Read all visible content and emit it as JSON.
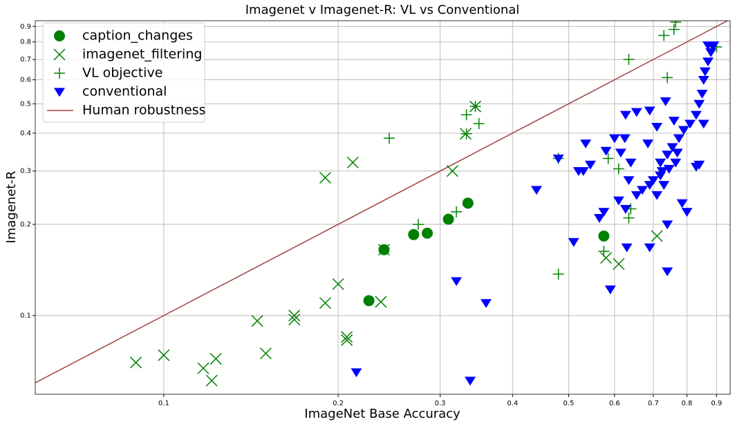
{
  "chart_data": {
    "type": "scatter",
    "title": "Imagenet v Imagenet-R: VL vs Conventional",
    "x_label": "ImageNet Base Accuracy",
    "y_label": "Imagenet-R",
    "xscale": "log",
    "yscale": "log",
    "xlim": [
      0.06,
      0.95
    ],
    "ylim": [
      0.055,
      0.94
    ],
    "xticks": [
      0.1,
      0.2,
      0.3,
      0.4,
      0.5,
      0.6,
      0.7,
      0.8,
      0.9
    ],
    "yticks": [
      0.1,
      0.2,
      0.3,
      0.4,
      0.5,
      0.6,
      0.7,
      0.8,
      0.9
    ],
    "grid": true,
    "legend": "upper left",
    "series": [
      {
        "name": "caption_changes",
        "color": "#008000",
        "marker": "circle",
        "x": [
          0.24,
          0.226,
          0.27,
          0.285,
          0.31,
          0.335,
          0.575
        ],
        "values": [
          0.165,
          0.112,
          0.185,
          0.187,
          0.208,
          0.235,
          0.183
        ]
      },
      {
        "name": "imagenet_filtering",
        "color": "#008000",
        "marker": "x",
        "x": [
          0.0895,
          0.1,
          0.117,
          0.123,
          0.121,
          0.15,
          0.145,
          0.168,
          0.168,
          0.19,
          0.19,
          0.2,
          0.212,
          0.207,
          0.207,
          0.237,
          0.24,
          0.315,
          0.332,
          0.345,
          0.58,
          0.61,
          0.71
        ],
        "values": [
          0.07,
          0.074,
          0.067,
          0.072,
          0.061,
          0.075,
          0.096,
          0.097,
          0.1,
          0.285,
          0.11,
          0.127,
          0.32,
          0.085,
          0.083,
          0.111,
          0.165,
          0.3,
          0.398,
          0.49,
          0.155,
          0.148,
          0.183
        ]
      },
      {
        "name": "VL objective",
        "color": "#008000",
        "marker": "plus",
        "x": [
          0.245,
          0.275,
          0.32,
          0.333,
          0.333,
          0.345,
          0.35,
          0.48,
          0.48,
          0.575,
          0.585,
          0.61,
          0.64,
          0.635,
          0.635,
          0.74,
          0.73,
          0.76,
          0.765,
          0.9
        ],
        "values": [
          0.385,
          0.2,
          0.22,
          0.398,
          0.46,
          0.49,
          0.43,
          0.137,
          0.33,
          0.163,
          0.33,
          0.305,
          0.225,
          0.21,
          0.7,
          0.61,
          0.84,
          0.88,
          0.93,
          0.77
        ]
      },
      {
        "name": "conventional",
        "color": "#0000ff",
        "marker": "triangle-down",
        "x": [
          0.215,
          0.338,
          0.32,
          0.36,
          0.44,
          0.48,
          0.51,
          0.52,
          0.53,
          0.535,
          0.545,
          0.565,
          0.58,
          0.575,
          0.59,
          0.6,
          0.625,
          0.627,
          0.63,
          0.627,
          0.61,
          0.615,
          0.635,
          0.655,
          0.655,
          0.69,
          0.69,
          0.685,
          0.71,
          0.735,
          0.74,
          0.74,
          0.76,
          0.77,
          0.785,
          0.8,
          0.83,
          0.84,
          0.855,
          0.64,
          0.67,
          0.71,
          0.725,
          0.72,
          0.74,
          0.755,
          0.775,
          0.79,
          0.81,
          0.83,
          0.84,
          0.85,
          0.855,
          0.86,
          0.87,
          0.88,
          0.885,
          0.87,
          0.89,
          0.7,
          0.72,
          0.745,
          0.765,
          0.73,
          0.69
        ],
        "values": [
          0.065,
          0.061,
          0.13,
          0.11,
          0.26,
          0.33,
          0.175,
          0.3,
          0.3,
          0.37,
          0.315,
          0.21,
          0.35,
          0.22,
          0.122,
          0.385,
          0.385,
          0.46,
          0.168,
          0.225,
          0.24,
          0.345,
          0.28,
          0.47,
          0.25,
          0.475,
          0.168,
          0.37,
          0.42,
          0.51,
          0.2,
          0.14,
          0.44,
          0.345,
          0.235,
          0.22,
          0.31,
          0.315,
          0.43,
          0.32,
          0.26,
          0.25,
          0.3,
          0.32,
          0.34,
          0.36,
          0.385,
          0.41,
          0.43,
          0.46,
          0.5,
          0.54,
          0.6,
          0.64,
          0.69,
          0.74,
          0.78,
          0.78,
          0.78,
          0.28,
          0.29,
          0.305,
          0.32,
          0.27,
          0.27
        ]
      }
    ],
    "reference_line": {
      "name": "Human robustness",
      "color": "#a0403c"
    }
  }
}
